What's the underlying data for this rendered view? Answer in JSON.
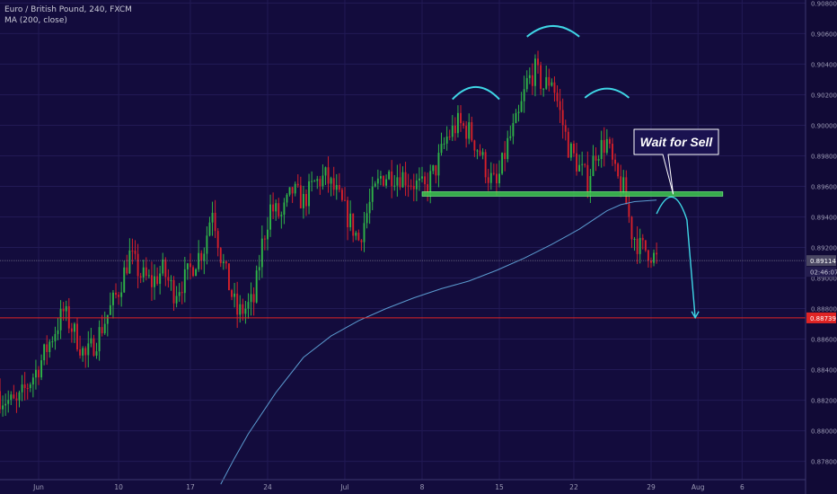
{
  "header": {
    "symbol_line": "Euro / British Pound, 240, FXCM",
    "indicator_line": "MA (200, close)"
  },
  "annotation": {
    "callout_text": "Wait for Sell"
  },
  "price_tags": {
    "current_price": "0.89114",
    "countdown": "02:46:07",
    "target_price": "0.88739"
  },
  "colors": {
    "background": "#130c3d",
    "bull_candle": "#2fb347",
    "bear_candle": "#d4202a",
    "moving_average": "#5b9bd0",
    "neckline": "#3ec94f",
    "drawing": "#3fd6e6",
    "target_line": "#e02424"
  },
  "chart_data": {
    "type": "candlestick",
    "title": "Euro / British Pound, 240, FXCM",
    "indicator": "MA (200, close)",
    "x_tick_labels": [
      "Jun",
      "10",
      "17",
      "24",
      "Jul",
      "8",
      "15",
      "22",
      "29",
      "Aug",
      "6"
    ],
    "y_tick_labels": [
      "0.90800",
      "0.90600",
      "0.90400",
      "0.90200",
      "0.90000",
      "0.89800",
      "0.89600",
      "0.89400",
      "0.89200",
      "0.89000",
      "0.88800",
      "0.88600",
      "0.88400",
      "0.88200",
      "0.88000",
      "0.87800"
    ],
    "ylim": [
      0.8768,
      0.9082
    ],
    "x_index_range": [
      0,
      292
    ],
    "date_ticks": [
      {
        "label": "Jun",
        "index": 14
      },
      {
        "label": "10",
        "index": 43
      },
      {
        "label": "17",
        "index": 69
      },
      {
        "label": "24",
        "index": 97
      },
      {
        "label": "Jul",
        "index": 125
      },
      {
        "label": "8",
        "index": 153
      },
      {
        "label": "15",
        "index": 181
      },
      {
        "label": "22",
        "index": 208
      },
      {
        "label": "29",
        "index": 236
      },
      {
        "label": "Aug",
        "index": 253
      },
      {
        "label": "6",
        "index": 269
      }
    ],
    "close_path": [
      [
        0,
        0.8822
      ],
      [
        6,
        0.8817
      ],
      [
        10,
        0.883
      ],
      [
        14,
        0.8842
      ],
      [
        19,
        0.8862
      ],
      [
        23,
        0.8878
      ],
      [
        27,
        0.8864
      ],
      [
        31,
        0.8848
      ],
      [
        35,
        0.886
      ],
      [
        39,
        0.8876
      ],
      [
        43,
        0.8892
      ],
      [
        47,
        0.8915
      ],
      [
        51,
        0.8902
      ],
      [
        55,
        0.8897
      ],
      [
        59,
        0.8905
      ],
      [
        63,
        0.8891
      ],
      [
        67,
        0.8899
      ],
      [
        71,
        0.8912
      ],
      [
        74,
        0.892
      ],
      [
        77,
        0.8947
      ],
      [
        80,
        0.8915
      ],
      [
        83,
        0.8895
      ],
      [
        86,
        0.8877
      ],
      [
        89,
        0.888
      ],
      [
        92,
        0.8885
      ],
      [
        95,
        0.8922
      ],
      [
        98,
        0.8946
      ],
      [
        102,
        0.894
      ],
      [
        106,
        0.8957
      ],
      [
        110,
        0.895
      ],
      [
        114,
        0.8962
      ],
      [
        118,
        0.8966
      ],
      [
        122,
        0.8955
      ],
      [
        126,
        0.894
      ],
      [
        130,
        0.8925
      ],
      [
        134,
        0.8948
      ],
      [
        138,
        0.8966
      ],
      [
        142,
        0.8968
      ],
      [
        146,
        0.8967
      ],
      [
        150,
        0.8962
      ],
      [
        154,
        0.8958
      ],
      [
        158,
        0.8972
      ],
      [
        162,
        0.8992
      ],
      [
        166,
        0.9001
      ],
      [
        170,
        0.8996
      ],
      [
        174,
        0.8982
      ],
      [
        177,
        0.8967
      ],
      [
        180,
        0.896
      ],
      [
        184,
        0.8988
      ],
      [
        188,
        0.9005
      ],
      [
        191,
        0.9028
      ],
      [
        194,
        0.9036
      ],
      [
        197,
        0.9025
      ],
      [
        200,
        0.9031
      ],
      [
        203,
        0.9008
      ],
      [
        206,
        0.8986
      ],
      [
        210,
        0.8972
      ],
      [
        213,
        0.8964
      ],
      [
        216,
        0.8983
      ],
      [
        220,
        0.8989
      ],
      [
        223,
        0.8967
      ],
      [
        226,
        0.8958
      ],
      [
        229,
        0.893
      ],
      [
        232,
        0.892
      ],
      [
        235,
        0.8918
      ],
      [
        238,
        0.8912
      ]
    ],
    "moving_average_path": [
      [
        80,
        0.8765
      ],
      [
        85,
        0.8782
      ],
      [
        90,
        0.8798
      ],
      [
        100,
        0.8825
      ],
      [
        110,
        0.8848
      ],
      [
        120,
        0.8862
      ],
      [
        130,
        0.8872
      ],
      [
        140,
        0.888
      ],
      [
        150,
        0.8887
      ],
      [
        160,
        0.8893
      ],
      [
        170,
        0.8898
      ],
      [
        180,
        0.8905
      ],
      [
        190,
        0.8913
      ],
      [
        200,
        0.8922
      ],
      [
        210,
        0.8932
      ],
      [
        220,
        0.8944
      ],
      [
        225,
        0.8948
      ],
      [
        230,
        0.895
      ],
      [
        238,
        0.8951
      ]
    ],
    "neckline": {
      "x_start": 153,
      "x_end": 262,
      "price": 0.8955
    },
    "current_price": 0.89114,
    "target_price": 0.88739,
    "drawing": {
      "left_shoulder_arc": {
        "x": [
          164,
          181
        ],
        "base": 0.9017,
        "peak": 0.9025
      },
      "head_arc": {
        "x": [
          191,
          210
        ],
        "base": 0.9058,
        "peak": 0.9065
      },
      "right_shoulder_arc": {
        "x": [
          212,
          228
        ],
        "base": 0.9018,
        "peak": 0.9024
      },
      "projection": [
        [
          238,
          0.8942
        ],
        [
          244,
          0.8953
        ],
        [
          249,
          0.8938
        ],
        [
          252,
          0.8874
        ]
      ],
      "callout_anchor": [
        244,
        0.8955
      ]
    }
  }
}
